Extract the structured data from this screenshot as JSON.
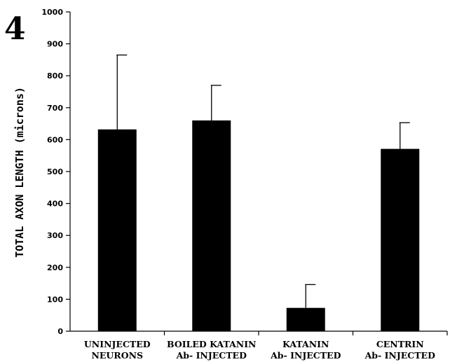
{
  "panel_label": "4",
  "chart_data": {
    "type": "bar",
    "title": "",
    "xlabel": "",
    "ylabel": "TOTAL AXON LENGTH (microns)",
    "ylim": [
      0,
      1000
    ],
    "yticks": [
      0,
      100,
      200,
      300,
      400,
      500,
      600,
      700,
      800,
      900,
      1000
    ],
    "categories": [
      {
        "line1": "UNINJECTED",
        "line2": "NEURONS"
      },
      {
        "line1": "BOILED KATANIN",
        "line2": "Ab- INJECTED"
      },
      {
        "line1": "KATANIN",
        "line2": "Ab- INJECTED"
      },
      {
        "line1": "CENTRIN",
        "line2": "Ab- INJECTED"
      }
    ],
    "values": [
      632,
      660,
      73,
      571
    ],
    "errors": [
      233,
      110,
      73,
      82
    ],
    "grid": false,
    "legend": "none",
    "bar_color": "#000000"
  }
}
